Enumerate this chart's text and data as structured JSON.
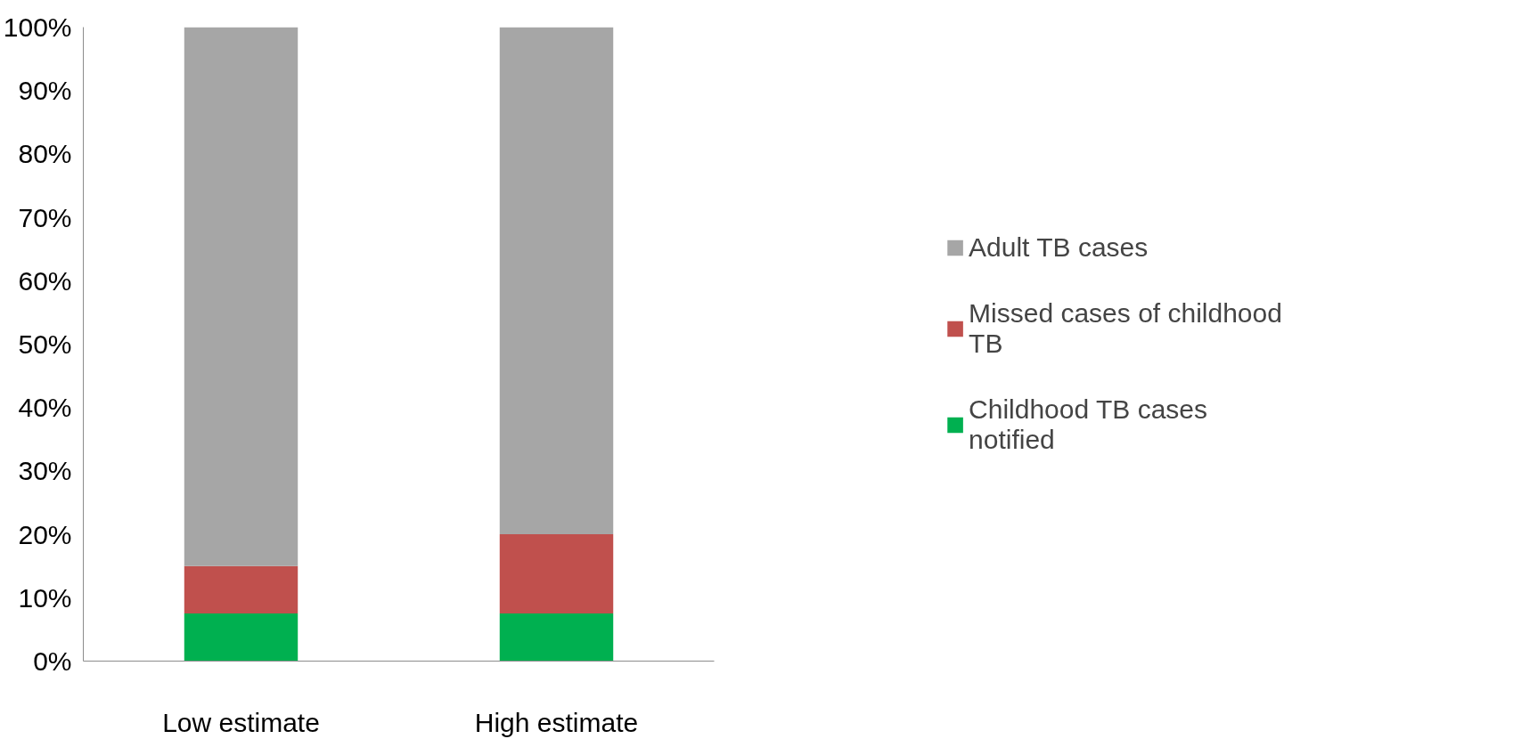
{
  "chart_data": {
    "type": "bar",
    "stacked": true,
    "categories": [
      "Low estimate",
      "High estimate"
    ],
    "series": [
      {
        "name": "Childhood TB cases notified",
        "color": "#00b050",
        "values": [
          7.5,
          7.5
        ]
      },
      {
        "name": "Missed cases of childhood TB",
        "color": "#c0504d",
        "values": [
          7.5,
          12.5
        ]
      },
      {
        "name": "Adult TB cases",
        "color": "#a6a6a6",
        "values": [
          85,
          80
        ]
      }
    ],
    "ylim": [
      0,
      100
    ],
    "yticks": [
      {
        "value": 0,
        "label": "0%"
      },
      {
        "value": 10,
        "label": "10%"
      },
      {
        "value": 20,
        "label": "20%"
      },
      {
        "value": 30,
        "label": "30%"
      },
      {
        "value": 40,
        "label": "40%"
      },
      {
        "value": 50,
        "label": "50%"
      },
      {
        "value": 60,
        "label": "60%"
      },
      {
        "value": 70,
        "label": "70%"
      },
      {
        "value": 80,
        "label": "80%"
      },
      {
        "value": 90,
        "label": "90%"
      },
      {
        "value": 100,
        "label": "100%"
      }
    ],
    "grid": false,
    "legend": "right"
  }
}
